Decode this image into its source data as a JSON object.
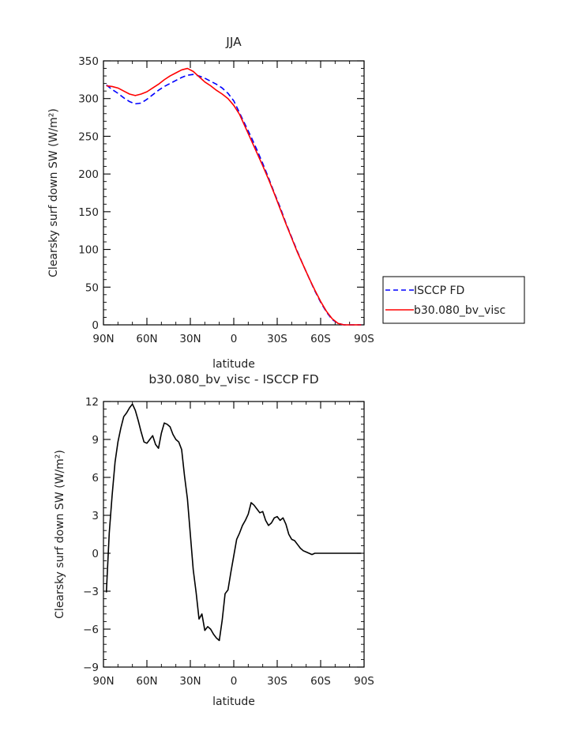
{
  "chart_data": [
    {
      "type": "line",
      "title": "JJA",
      "xlabel": "latitude",
      "ylabel": "Clearsky surf down SW (W/m²)",
      "x_tick_labels": [
        "90N",
        "60N",
        "30N",
        "0",
        "30S",
        "60S",
        "90S"
      ],
      "x_tick_values": [
        90,
        60,
        30,
        0,
        -30,
        -60,
        -90
      ],
      "xlim": [
        90,
        -90
      ],
      "ylim": [
        0,
        350
      ],
      "y_tick_labels": [
        "0",
        "50",
        "100",
        "150",
        "200",
        "250",
        "300",
        "350"
      ],
      "y_tick_values": [
        0,
        50,
        100,
        150,
        200,
        250,
        300,
        350
      ],
      "grid": false,
      "legend_position": "outside-right",
      "series": [
        {
          "name": "ISCCP FD",
          "color": "#0000ff",
          "dash": "dashed",
          "x": [
            88,
            84,
            80,
            76,
            72,
            68,
            64,
            60,
            56,
            52,
            48,
            44,
            40,
            36,
            32,
            28,
            24,
            20,
            16,
            12,
            8,
            4,
            0,
            -4,
            -8,
            -12,
            -16,
            -20,
            -24,
            -28,
            -32,
            -36,
            -40,
            -44,
            -48,
            -52,
            -56,
            -60,
            -64,
            -68,
            -72,
            -76,
            -80,
            -84,
            -88
          ],
          "y": [
            318,
            312,
            307,
            301,
            296,
            293,
            294,
            299,
            305,
            311,
            316,
            320,
            324,
            328,
            331,
            332,
            330,
            327,
            323,
            319,
            314,
            307,
            297,
            281,
            265,
            249,
            232,
            214,
            195,
            175,
            156,
            135,
            116,
            97,
            79,
            62,
            45,
            30,
            17,
            7,
            2,
            0,
            0,
            0,
            0
          ]
        },
        {
          "name": "b30.080_bv_visc",
          "color": "#ff0000",
          "dash": "solid",
          "x": [
            88,
            84,
            80,
            76,
            72,
            68,
            64,
            60,
            56,
            52,
            48,
            44,
            40,
            36,
            32,
            28,
            24,
            20,
            16,
            12,
            8,
            4,
            0,
            -4,
            -8,
            -12,
            -16,
            -20,
            -24,
            -28,
            -32,
            -36,
            -40,
            -44,
            -48,
            -52,
            -56,
            -60,
            -64,
            -68,
            -72,
            -76,
            -80,
            -84,
            -88
          ],
          "y": [
            317,
            316,
            314,
            310,
            306,
            304,
            306,
            309,
            314,
            319,
            325,
            330,
            334,
            338,
            340,
            336,
            329,
            322,
            317,
            311,
            306,
            300,
            291,
            279,
            262,
            245,
            228,
            211,
            193,
            174,
            154,
            134,
            115,
            96,
            79,
            62,
            46,
            31,
            18,
            8,
            2,
            0,
            0,
            0,
            0
          ]
        }
      ]
    },
    {
      "type": "line",
      "title": "b30.080_bv_visc - ISCCP FD",
      "xlabel": "latitude",
      "ylabel": "Clearsky surf down SW (W/m²)",
      "x_tick_labels": [
        "90N",
        "60N",
        "30N",
        "0",
        "30S",
        "60S",
        "90S"
      ],
      "x_tick_values": [
        90,
        60,
        30,
        0,
        -30,
        -60,
        -90
      ],
      "xlim": [
        90,
        -90
      ],
      "ylim": [
        -9,
        12
      ],
      "y_tick_labels": [
        "−9",
        "−6",
        "−3",
        "0",
        "3",
        "6",
        "9",
        "12"
      ],
      "y_tick_values": [
        -9,
        -6,
        -3,
        0,
        3,
        6,
        9,
        12
      ],
      "grid": false,
      "series": [
        {
          "color": "#000000",
          "dash": "solid",
          "x": [
            88,
            86,
            84,
            82,
            80,
            78,
            76,
            74,
            72,
            70,
            68,
            66,
            64,
            62,
            60,
            58,
            56,
            54,
            52,
            50,
            48,
            46,
            44,
            42,
            40,
            38,
            36,
            34,
            32,
            30,
            28,
            26,
            24,
            22,
            20,
            18,
            16,
            14,
            12,
            10,
            8,
            6,
            4,
            2,
            0,
            -2,
            -4,
            -6,
            -8,
            -10,
            -12,
            -14,
            -16,
            -18,
            -20,
            -22,
            -24,
            -26,
            -28,
            -30,
            -32,
            -34,
            -36,
            -38,
            -40,
            -42,
            -44,
            -46,
            -48,
            -50,
            -52,
            -54,
            -56,
            -58,
            -60,
            -62,
            -64,
            -66,
            -68,
            -70,
            -72,
            -74,
            -76,
            -78,
            -80,
            -82,
            -84,
            -86,
            -88
          ],
          "y": [
            -3.1,
            1.6,
            4.6,
            7.2,
            8.8,
            9.9,
            10.8,
            11.1,
            11.5,
            11.8,
            11.3,
            10.5,
            9.6,
            8.8,
            8.7,
            9.0,
            9.3,
            8.6,
            8.3,
            9.5,
            10.3,
            10.2,
            10.0,
            9.4,
            9.0,
            8.8,
            8.2,
            6.1,
            4.3,
            1.5,
            -1.3,
            -3.1,
            -5.2,
            -4.8,
            -6.1,
            -5.8,
            -6.0,
            -6.4,
            -6.7,
            -6.9,
            -5.3,
            -3.2,
            -2.9,
            -1.5,
            -0.2,
            1.1,
            1.6,
            2.2,
            2.6,
            3.1,
            4.0,
            3.8,
            3.5,
            3.2,
            3.3,
            2.6,
            2.2,
            2.4,
            2.8,
            2.9,
            2.6,
            2.8,
            2.3,
            1.5,
            1.1,
            1.0,
            0.7,
            0.4,
            0.2,
            0.1,
            0.0,
            -0.1,
            0.0,
            0.0,
            0.0,
            0.0,
            0.0,
            0.0,
            0.0,
            0.0,
            0.0,
            0.0,
            0.0,
            0.0,
            0.0,
            0.0,
            0.0,
            0.0,
            0.0
          ]
        }
      ]
    }
  ]
}
